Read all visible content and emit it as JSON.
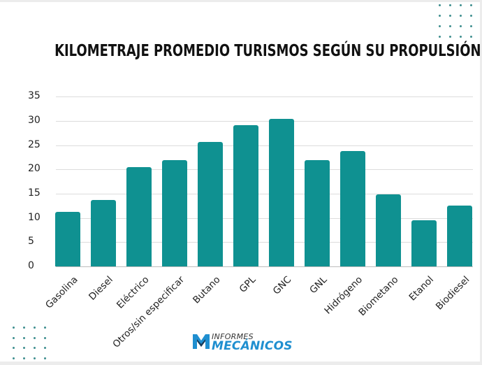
{
  "title": "KILOMETRAJE PROMEDIO TURISMOS SEGÚN SU PROPULSIÓN",
  "logo": {
    "line1": "INFORMES",
    "line2": "MECÁNICOS",
    "accent": "#1f8fd0"
  },
  "colors": {
    "bar": "#0f9191",
    "grid": "#dcdcdc",
    "dots": "#3f8f8f"
  },
  "y_ticks": [
    "0",
    "5",
    "10",
    "15",
    "20",
    "25",
    "30",
    "35"
  ],
  "categories": [
    "Gasolina",
    "Diesel",
    "Eléctrico",
    "Otros/sin especificar",
    "Butano",
    "GPL",
    "GNC",
    "GNL",
    "Hidrógeno",
    "Biometano",
    "Etanol",
    "Biodiesel"
  ],
  "chart_data": {
    "type": "bar",
    "title": "KILOMETRAJE PROMEDIO TURISMOS SEGÚN SU PROPULSIÓN",
    "categories": [
      "Gasolina",
      "Diesel",
      "Eléctrico",
      "Otros/sin especificar",
      "Butano",
      "GPL",
      "GNC",
      "GNL",
      "Hidrógeno",
      "Biometano",
      "Etanol",
      "Biodiesel"
    ],
    "values": [
      11.3,
      13.7,
      20.4,
      21.9,
      25.6,
      29.1,
      30.4,
      21.9,
      23.8,
      14.8,
      9.5,
      12.5
    ],
    "xlabel": "",
    "ylabel": "",
    "ylim": [
      0,
      35
    ],
    "yticks": [
      0,
      5,
      10,
      15,
      20,
      25,
      30,
      35
    ],
    "grid": true,
    "legend": null
  }
}
